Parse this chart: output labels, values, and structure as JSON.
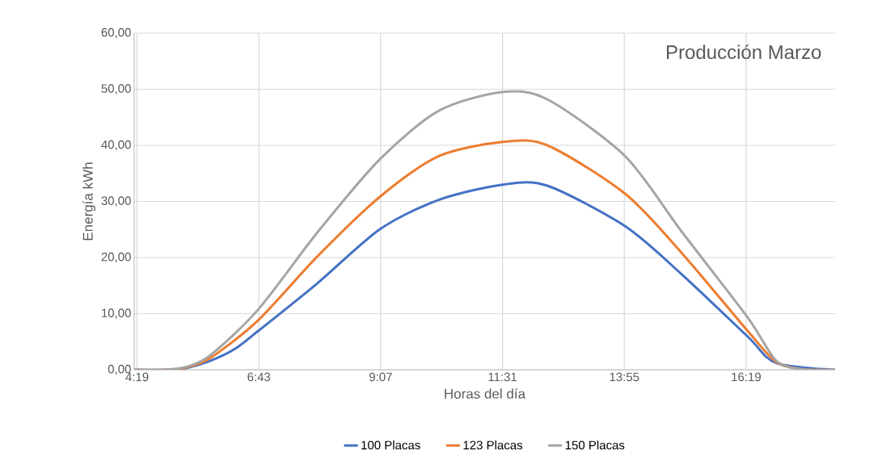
{
  "chart_data": {
    "type": "line",
    "title": "Producción Marzo",
    "xlabel": "Horas del día",
    "ylabel": "Energía kWh",
    "xlim": [
      4.26,
      18.07
    ],
    "ylim": [
      0,
      60
    ],
    "xticks": [
      {
        "value": 4.3167,
        "label": "4:19"
      },
      {
        "value": 6.7167,
        "label": "6:43"
      },
      {
        "value": 9.1167,
        "label": "9:07"
      },
      {
        "value": 11.5167,
        "label": "11:31"
      },
      {
        "value": 13.9167,
        "label": "13:55"
      },
      {
        "value": 16.3167,
        "label": "16:19"
      }
    ],
    "yticks": [
      {
        "value": 0,
        "label": "0,00"
      },
      {
        "value": 10,
        "label": "10,00"
      },
      {
        "value": 20,
        "label": "20,00"
      },
      {
        "value": 30,
        "label": "30,00"
      },
      {
        "value": 40,
        "label": "40,00"
      },
      {
        "value": 50,
        "label": "50,00"
      },
      {
        "value": 60,
        "label": "60,00"
      }
    ],
    "grid": true,
    "legend": "bottom",
    "marker": "none",
    "line_style": "solid",
    "x": [
      4.26,
      4.88,
      5.28,
      5.76,
      6.24,
      6.7,
      7.35,
      7.88,
      8.31,
      9.11,
      10.01,
      10.27,
      10.8,
      11.52,
      12.4,
      13.93,
      15.05,
      16.35,
      16.91,
      17.43,
      18.07
    ],
    "series": [
      {
        "name": "100 Placas",
        "color": "#4472c4",
        "values": [
          0,
          0,
          0.3,
          1.6,
          3.7,
          6.9,
          null,
          15.5,
          null,
          25.1,
          null,
          30.3,
          null,
          33.0,
          32.8,
          25.6,
          17.0,
          5.9,
          1.2,
          null,
          0
        ]
      },
      {
        "name": "123 Placas",
        "color": "#ed7d31",
        "values": [
          0,
          0,
          0.4,
          2.1,
          null,
          8.8,
          null,
          20.3,
          null,
          30.9,
          null,
          38.1,
          null,
          40.6,
          40.0,
          31.4,
          20.8,
          6.9,
          1.4,
          0.1,
          0
        ]
      },
      {
        "name": "150 Placas",
        "color": "#a5a5a5",
        "values": [
          0,
          0,
          0.5,
          2.6,
          null,
          10.7,
          null,
          24.6,
          null,
          37.6,
          null,
          46.2,
          null,
          49.5,
          48.2,
          38.1,
          24.6,
          9.3,
          1.6,
          0.1,
          0
        ]
      }
    ]
  }
}
